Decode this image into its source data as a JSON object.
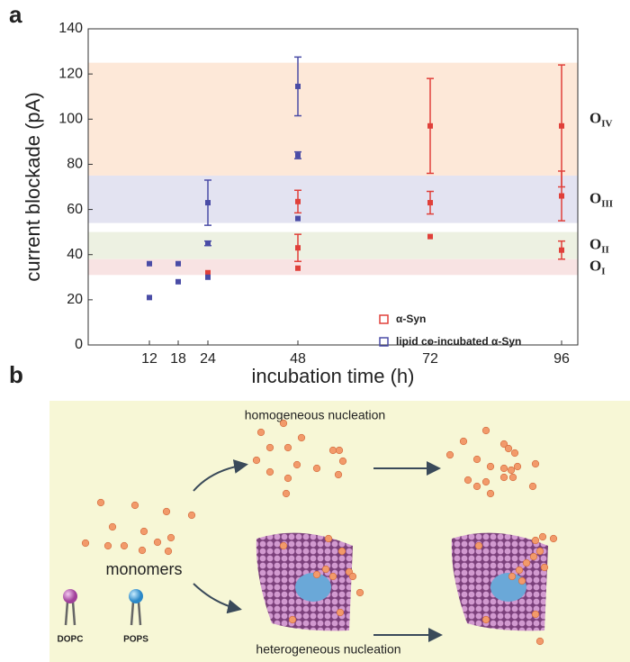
{
  "panels": [
    "a",
    "b"
  ],
  "chart_data": {
    "type": "scatter",
    "ylabel": "current blockade (pA)",
    "xlabel": "incubation time (h)",
    "categories": [
      "12",
      "18",
      "24",
      "48",
      "72",
      "96"
    ],
    "ylim": [
      0,
      140
    ],
    "yticks": [
      0,
      20,
      40,
      60,
      80,
      100,
      120,
      140
    ],
    "bands": [
      {
        "label": "O",
        "subscript": "IV",
        "range": [
          75,
          125
        ],
        "color": "#fde8d8"
      },
      {
        "label": "O",
        "subscript": "III",
        "range": [
          54,
          75
        ],
        "color": "#e3e3f1"
      },
      {
        "label": "O",
        "subscript": "II",
        "range": [
          38,
          50
        ],
        "color": "#edf1e2"
      },
      {
        "label": "O",
        "subscript": "I",
        "range": [
          31,
          38
        ],
        "color": "#f8e3e3"
      }
    ],
    "series": [
      {
        "name": "α-Syn",
        "color": "#e0403a",
        "x": [
          "24",
          "48",
          "48",
          "48",
          "72",
          "72",
          "72",
          "96",
          "96",
          "96"
        ],
        "values": [
          32,
          34,
          43,
          63.5,
          48,
          63,
          97,
          42,
          66,
          97
        ],
        "errors": [
          null,
          null,
          6,
          5,
          null,
          5,
          21,
          4,
          11,
          27
        ]
      },
      {
        "name": "lipid co-incubated α-Syn",
        "color": "#4a4ca6",
        "x": [
          "12",
          "12",
          "18",
          "18",
          "24",
          "24",
          "24",
          "48",
          "48",
          "48"
        ],
        "values": [
          36,
          21,
          36,
          28,
          30,
          45,
          63,
          56,
          84,
          114.5
        ],
        "errors": [
          null,
          null,
          null,
          null,
          null,
          1,
          10,
          null,
          1.5,
          13
        ]
      }
    ]
  },
  "diagram": {
    "top_label": "homogeneous nucleation",
    "monomers": "monomers",
    "lipid1": "DOPC",
    "lipid2": "POPS",
    "bottom_label": "heterogeneous nucleation"
  }
}
